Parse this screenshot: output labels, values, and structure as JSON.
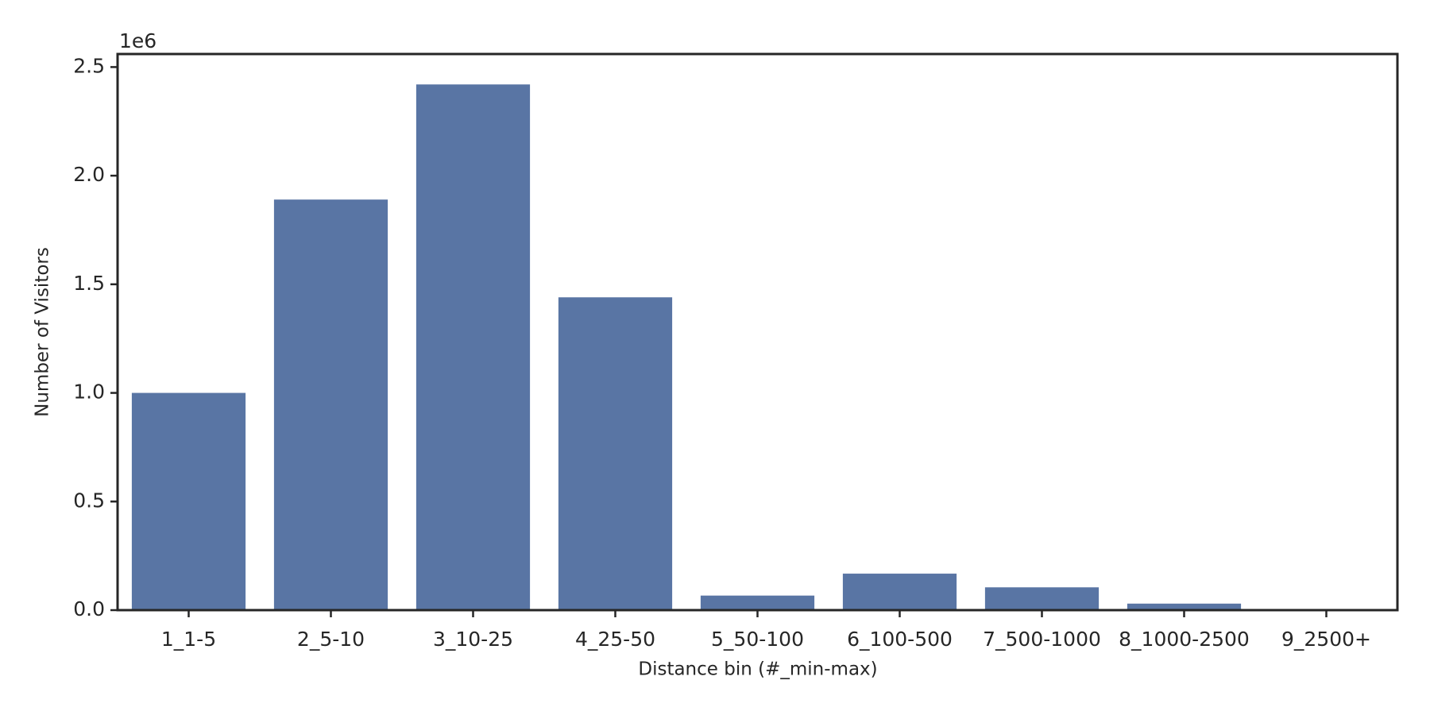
{
  "chart_data": {
    "type": "bar",
    "x_label": "Distance bin (#_min-max)",
    "y_label": "Number of Visitors",
    "y_offset_label": "1e6",
    "categories": [
      "1_1-5",
      "2_5-10",
      "3_10-25",
      "4_25-50",
      "5_50-100",
      "6_100-500",
      "7_500-1000",
      "8_1000-2500",
      "9_2500+"
    ],
    "values": [
      1.0,
      1.89,
      2.42,
      1.44,
      0.067,
      0.168,
      0.105,
      0.03,
      0.002
    ],
    "color": "#5975a4",
    "ylim": [
      0,
      2.56
    ],
    "yticks": [
      {
        "value": 0,
        "label": "0.0"
      },
      0.5,
      {
        "value": 1,
        "label": "1.0"
      },
      1.5,
      {
        "value": 2,
        "label": "2.0"
      },
      2.5
    ],
    "grid": false
  }
}
